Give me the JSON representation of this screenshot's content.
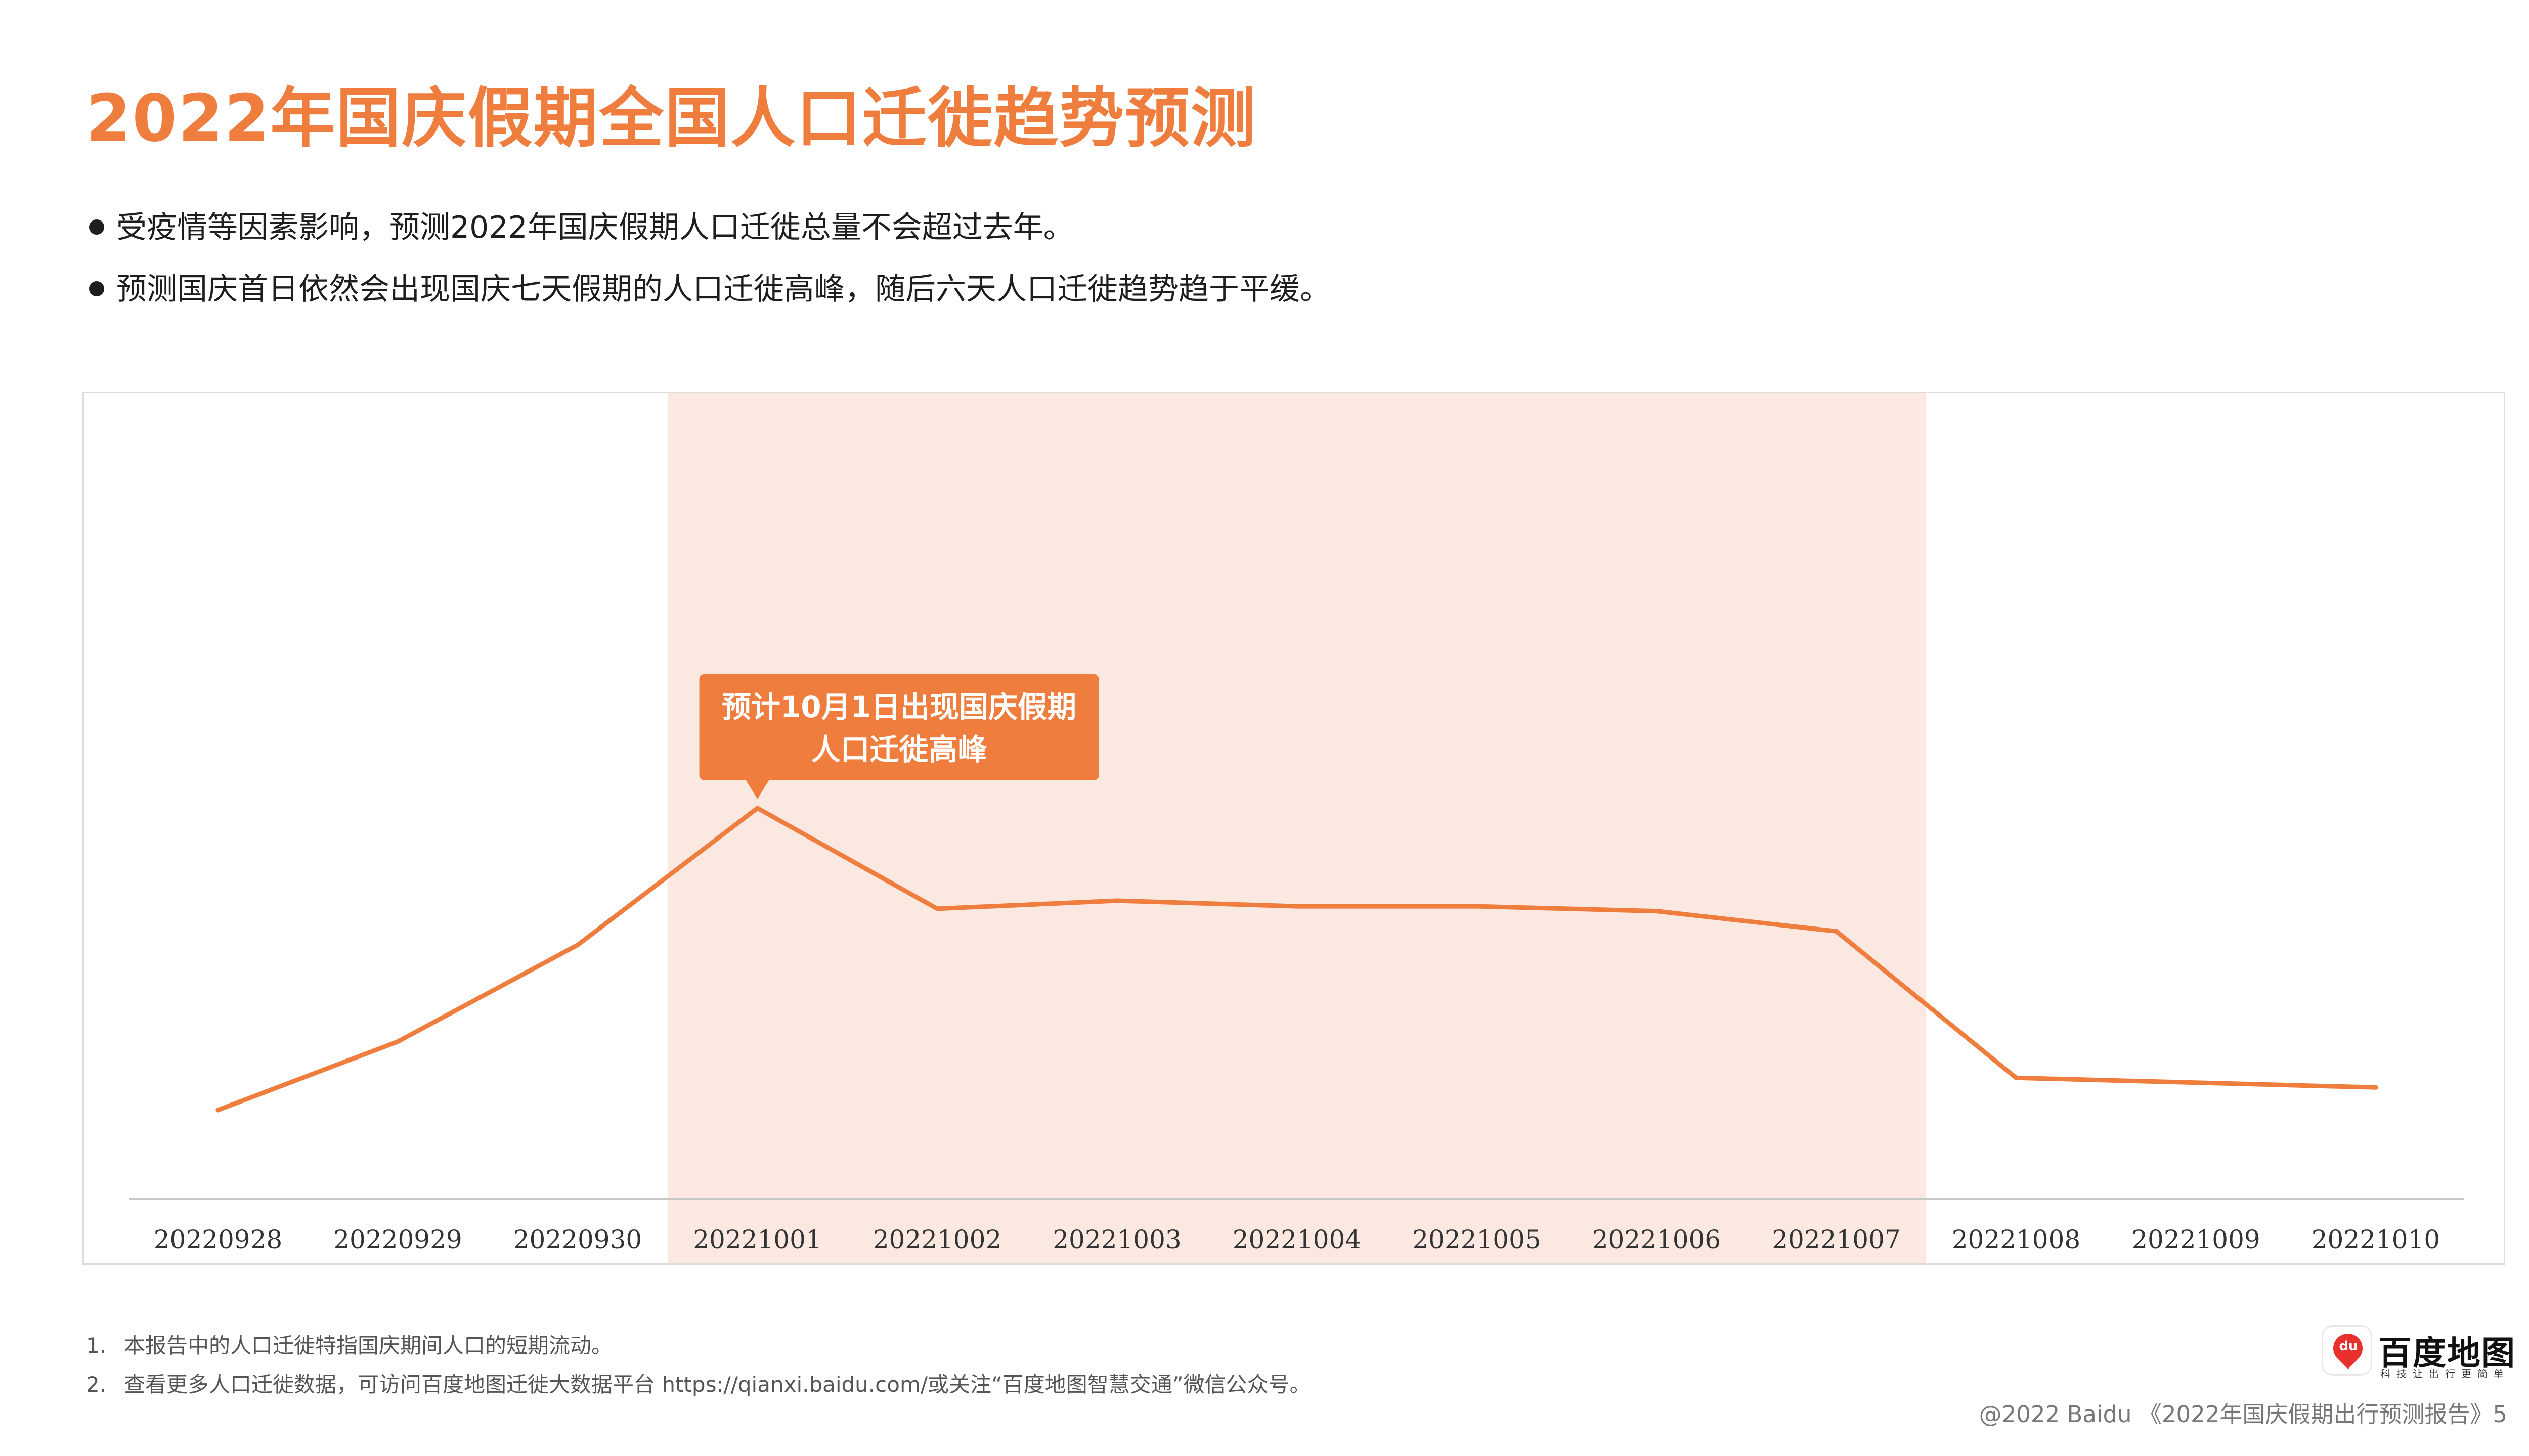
{
  "title": "2022年国庆假期全国人口迁徙趋势预测",
  "bullets": [
    "受疫情等因素影响，预测2022年国庆假期人口迁徙总量不会超过去年。",
    "预测国庆首日依然会出现国庆七天假期的人口迁徙高峰，随后六天人口迁徙趋势趋于平缓。"
  ],
  "chart_data": {
    "type": "line",
    "categories": [
      "20220928",
      "20220929",
      "20220930",
      "20221001",
      "20221002",
      "20221003",
      "20221004",
      "20221005",
      "20221006",
      "20221007",
      "20221008",
      "20221009",
      "20221010"
    ],
    "series": [
      {
        "values": [
          11,
          19.5,
          31.5,
          48.5,
          36,
          37,
          36.3,
          36.3,
          35.7,
          33.2,
          15,
          14.4,
          13.8
        ]
      }
    ],
    "ylim": [
      0,
      100
    ],
    "show_y_axis": false,
    "grid": false,
    "highlight_range": {
      "from": "20221001",
      "to": "20221007",
      "color": "#fbe8e0"
    },
    "line_color": "#ee7d3e",
    "annotations": [
      {
        "category": "20221001",
        "lines": [
          "预计10月1日出现国庆假期",
          "人口迁徙高峰"
        ],
        "color": "#ee7d3e"
      }
    ]
  },
  "footnotes": [
    {
      "num": "1.",
      "text": "本报告中的人口迁徙特指国庆期间人口的短期流动。"
    },
    {
      "num": "2.",
      "text": "查看更多人口迁徙数据，可访问百度地图迁徙大数据平台 https://qianxi.baidu.com/或关注“百度地图智慧交通”微信公众号。"
    }
  ],
  "logo": {
    "badge": "du",
    "name": "百度地图",
    "slogan": "科技让出行更简单"
  },
  "copyright": "@2022 Baidu 《2022年国庆假期出行预测报告》5",
  "colors": {
    "accent": "#ee7d3e",
    "highlight": "#fbe8e0"
  }
}
